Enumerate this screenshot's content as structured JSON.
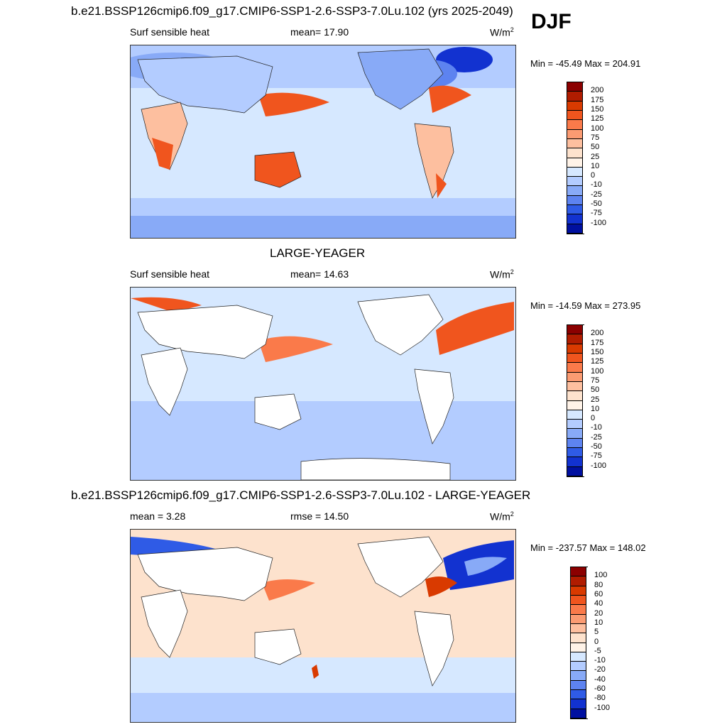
{
  "header": {
    "top_title": "b.e21.BSSP126cmip6.f09_g17.CMIP6-SSP1-2.6-SSP3-7.0Lu.102 (yrs 2025-2049)",
    "season": "DJF"
  },
  "panels": [
    {
      "id": "case",
      "variable": "Surf sensible heat",
      "stat_label": "mean=  17.90",
      "units_base": "W/m",
      "units_exp": "2",
      "minmax": "Min = -45.49 Max = 204.91",
      "colorbar_labels": [
        "200",
        "175",
        "150",
        "125",
        "100",
        "75",
        "50",
        "25",
        "10",
        "0",
        "-10",
        "-25",
        "-50",
        "-75",
        "-100"
      ],
      "colorbar_colors": [
        "#8b0000",
        "#b01c00",
        "#d93a00",
        "#f0551e",
        "#fa7a4a",
        "#fb9b72",
        "#fdbf9f",
        "#fde2cd",
        "#fff3e8",
        "#d6e8ff",
        "#b3ccff",
        "#88aaf7",
        "#5d83f0",
        "#2f5be6",
        "#1232d0",
        "#0010a0"
      ]
    },
    {
      "id": "obs",
      "title": "LARGE-YEAGER",
      "variable": "Surf sensible heat",
      "stat_label": "mean=  14.63",
      "units_base": "W/m",
      "units_exp": "2",
      "minmax": "Min = -14.59 Max = 273.95",
      "colorbar_labels": [
        "200",
        "175",
        "150",
        "125",
        "100",
        "75",
        "50",
        "25",
        "10",
        "0",
        "-10",
        "-25",
        "-50",
        "-75",
        "-100"
      ],
      "colorbar_colors": [
        "#8b0000",
        "#b01c00",
        "#d93a00",
        "#f0551e",
        "#fa7a4a",
        "#fb9b72",
        "#fdbf9f",
        "#fde2cd",
        "#fff3e8",
        "#d6e8ff",
        "#b3ccff",
        "#88aaf7",
        "#5d83f0",
        "#2f5be6",
        "#1232d0",
        "#0010a0"
      ]
    },
    {
      "id": "diff",
      "title": "b.e21.BSSP126cmip6.f09_g17.CMIP6-SSP1-2.6-SSP3-7.0Lu.102 - LARGE-YEAGER",
      "variable": "mean =   3.28",
      "stat_label": "rmse =  14.50",
      "units_base": "W/m",
      "units_exp": "2",
      "minmax": "Min = -237.57 Max = 148.02",
      "colorbar_labels": [
        "100",
        "80",
        "60",
        "40",
        "20",
        "10",
        "5",
        "0",
        "-5",
        "-10",
        "-20",
        "-40",
        "-60",
        "-80",
        "-100"
      ],
      "colorbar_colors": [
        "#8b0000",
        "#b01c00",
        "#d93a00",
        "#f0551e",
        "#fa7a4a",
        "#fb9b72",
        "#fdbf9f",
        "#fde2cd",
        "#fff3e8",
        "#d6e8ff",
        "#b3ccff",
        "#88aaf7",
        "#5d83f0",
        "#2f5be6",
        "#1232d0",
        "#0010a0"
      ]
    }
  ]
}
